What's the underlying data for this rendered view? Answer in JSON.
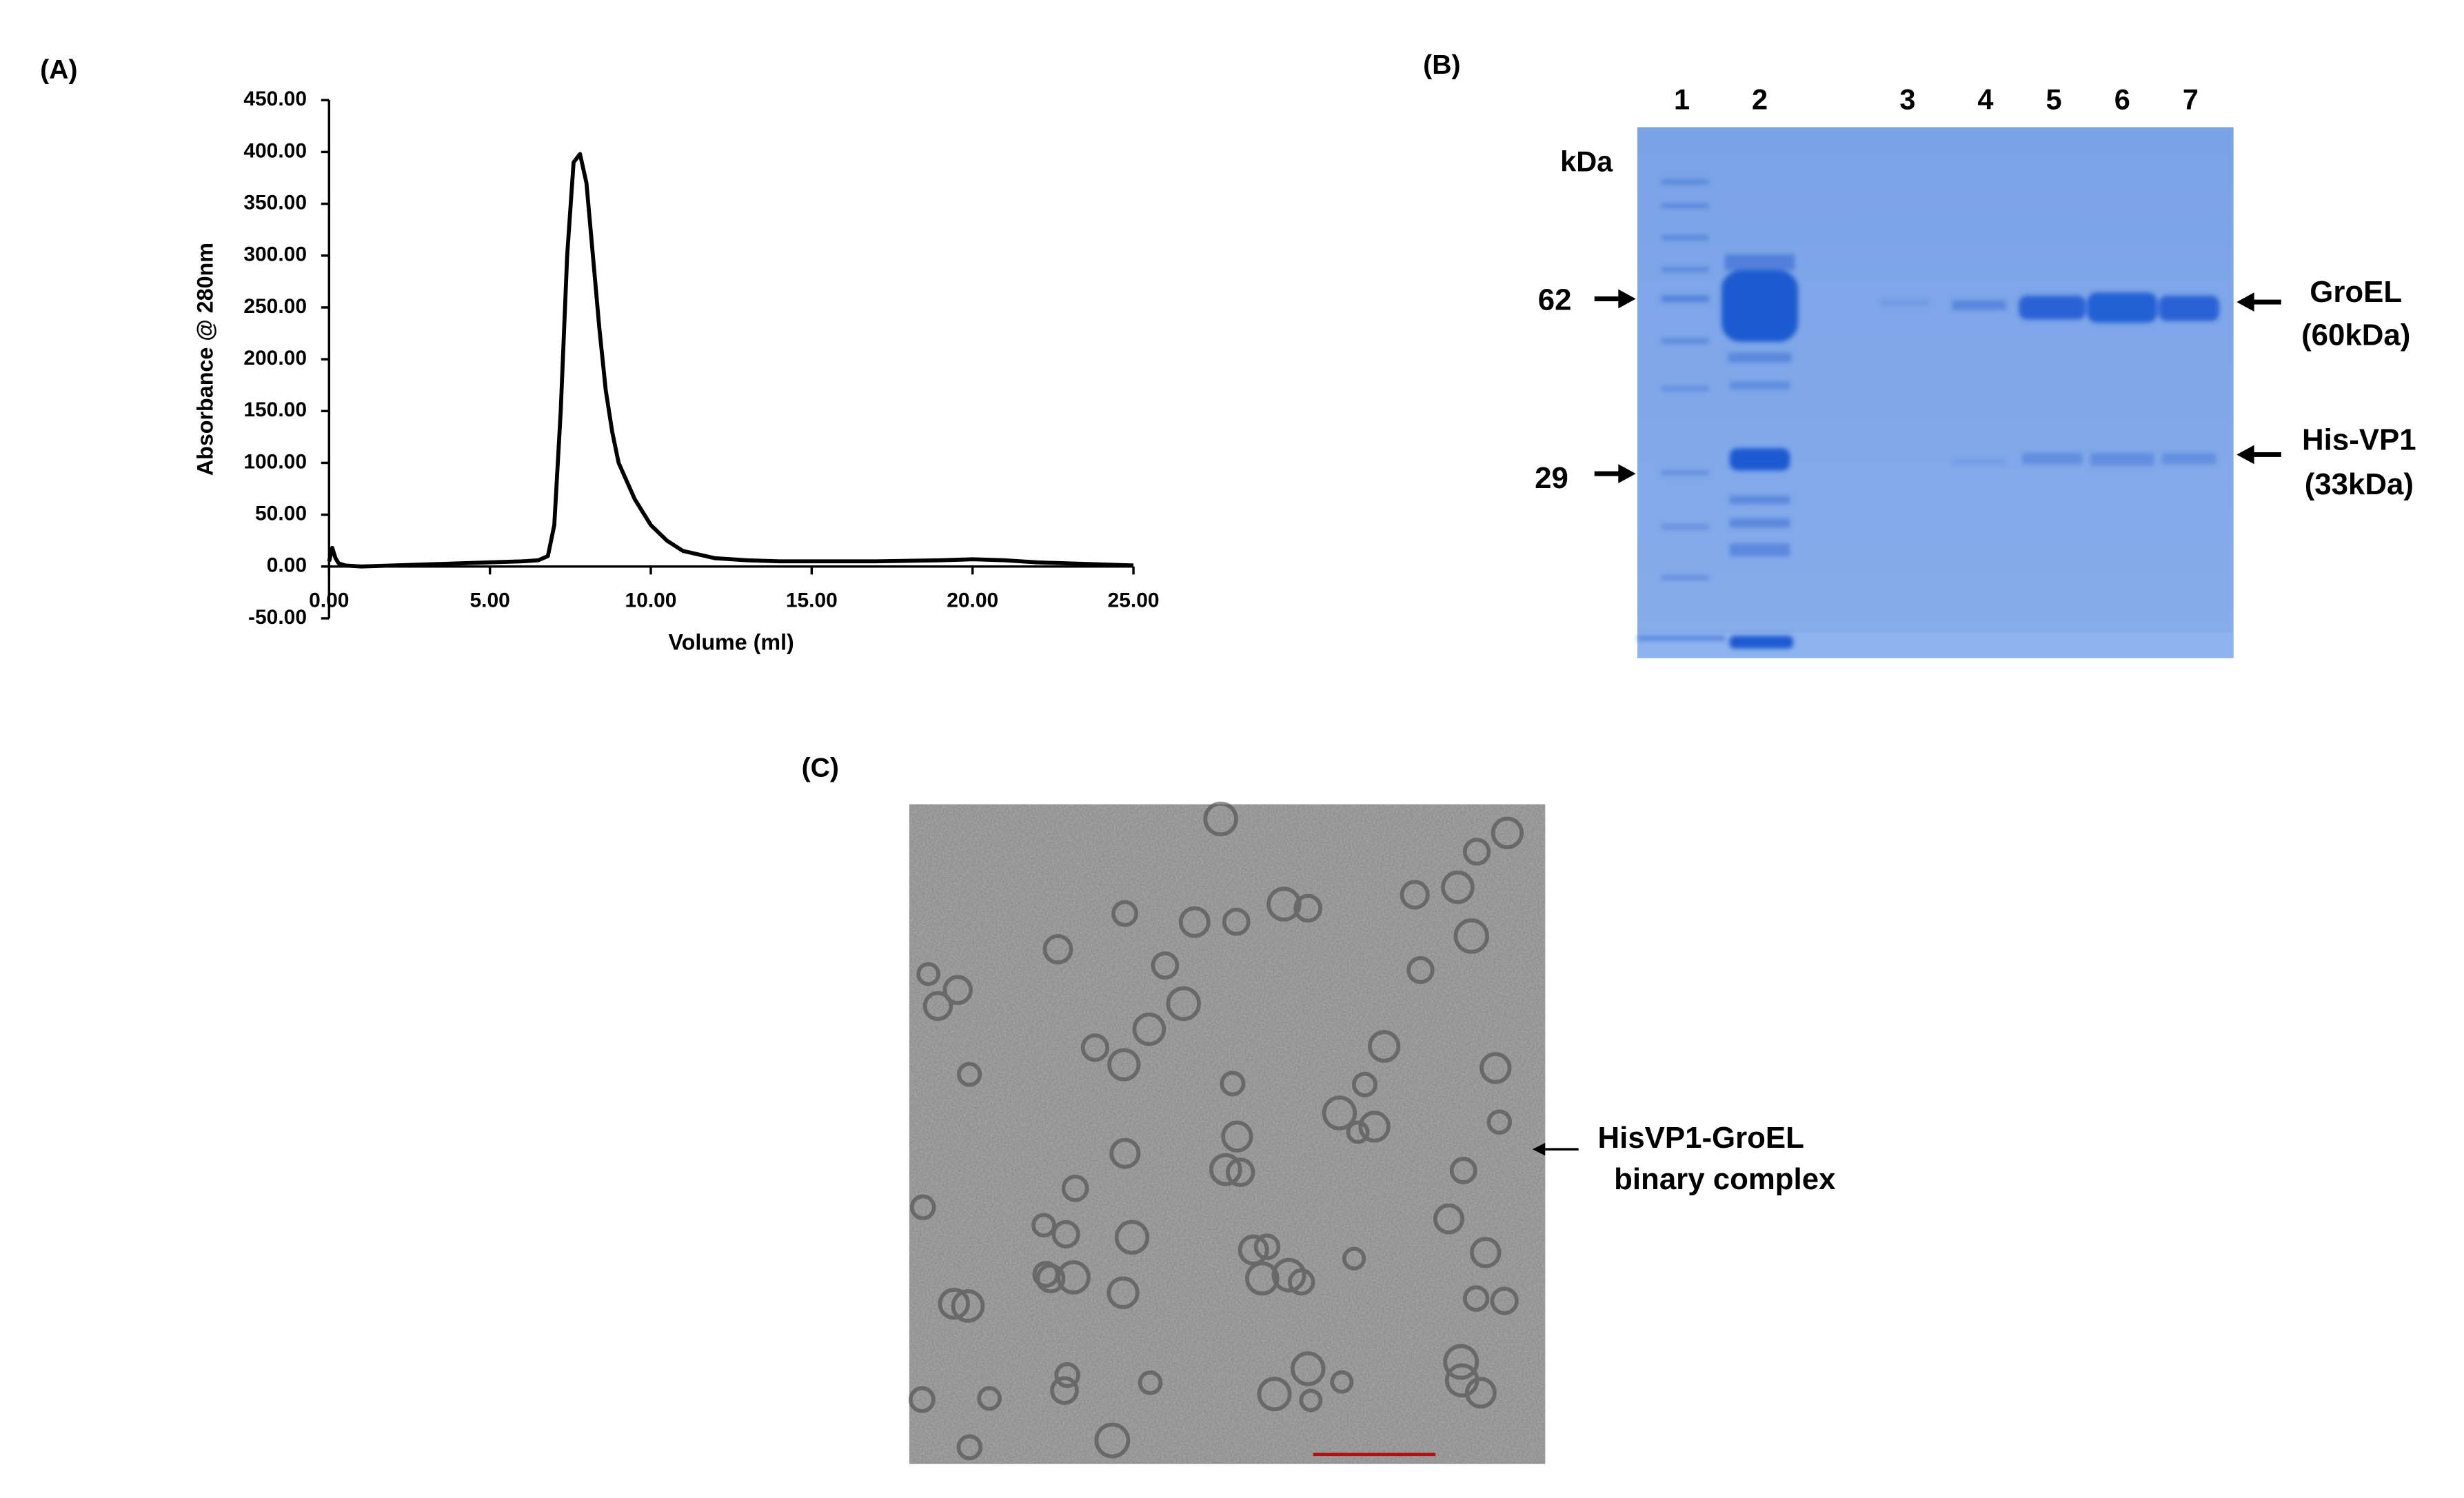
{
  "panel_labels": {
    "a": "(A)",
    "b": "(B)",
    "c": "(C)"
  },
  "chart_data": {
    "type": "line",
    "x_label": "Volume (ml)",
    "y_label": "Absorbance @ 280nm",
    "color": "#000000",
    "x": [
      0,
      0.1,
      0.2,
      0.3,
      0.5,
      1,
      2,
      3,
      4,
      5,
      6,
      6.5,
      6.8,
      7.0,
      7.2,
      7.4,
      7.6,
      7.8,
      8.0,
      8.2,
      8.4,
      8.6,
      8.8,
      9.0,
      9.5,
      10,
      10.5,
      11,
      12,
      13,
      14,
      15,
      17,
      19,
      20,
      21,
      22,
      23,
      24,
      25
    ],
    "values": [
      5,
      18,
      8,
      3,
      1,
      0,
      1,
      2,
      3,
      4,
      5,
      6,
      10,
      40,
      150,
      300,
      390,
      398,
      370,
      300,
      230,
      170,
      130,
      100,
      65,
      40,
      25,
      15,
      8,
      6,
      5,
      5,
      5,
      6,
      7,
      6,
      4,
      3,
      2,
      1
    ],
    "xlim": [
      0,
      25
    ],
    "ylim": [
      -50,
      450
    ],
    "xticks": [
      {
        "value": 0,
        "label": "0.00"
      },
      {
        "value": 5,
        "label": "5.00"
      },
      {
        "value": 10,
        "label": "10.00"
      },
      {
        "value": 15,
        "label": "15.00"
      },
      {
        "value": 20,
        "label": "20.00"
      },
      {
        "value": 25,
        "label": "25.00"
      }
    ],
    "yticks": [
      {
        "value": -50,
        "label": "-50.00"
      },
      {
        "value": 0,
        "label": "0.00"
      },
      {
        "value": 50,
        "label": "50.00"
      },
      {
        "value": 100,
        "label": "100.00"
      },
      {
        "value": 150,
        "label": "150.00"
      },
      {
        "value": 200,
        "label": "200.00"
      },
      {
        "value": 250,
        "label": "250.00"
      },
      {
        "value": 300,
        "label": "300.00"
      },
      {
        "value": 350,
        "label": "350.00"
      },
      {
        "value": 400,
        "label": "400.00"
      },
      {
        "value": 450,
        "label": "450.00"
      }
    ]
  },
  "gel": {
    "lanes": [
      "1",
      "2",
      "3",
      "4",
      "5",
      "6",
      "7"
    ],
    "unit": "kDa",
    "markers": [
      "62",
      "29"
    ],
    "bands": [
      {
        "name": "GroEL",
        "size": "(60kDa)"
      },
      {
        "name": "His-VP1",
        "size": "(33kDa)"
      }
    ]
  },
  "micrograph": {
    "annotation": [
      "HisVP1-GroEL",
      "binary complex"
    ]
  }
}
